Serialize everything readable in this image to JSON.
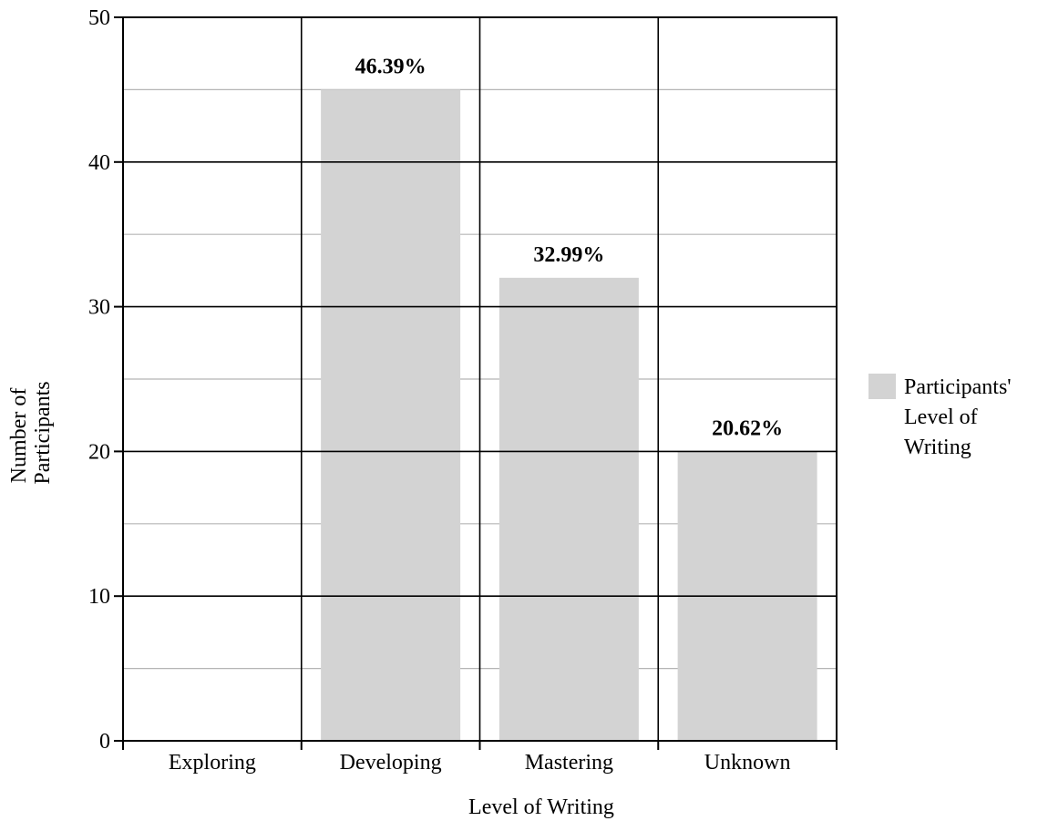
{
  "chart_data": {
    "type": "bar",
    "categories": [
      "Exploring",
      "Developing",
      "Mastering",
      "Unknown"
    ],
    "series": [
      {
        "name": "Participants' Level of Writing",
        "values": [
          0,
          45,
          32,
          20
        ],
        "data_labels": [
          "",
          "46.39%",
          "32.99%",
          "20.62%"
        ],
        "color": "#d3d3d3"
      }
    ],
    "xlabel": "Level of Writing",
    "ylabel_lines": [
      "Number of",
      "Participants"
    ],
    "ylim": [
      0,
      50
    ],
    "yticks": [
      0,
      10,
      20,
      30,
      40,
      50
    ],
    "grid": {
      "major": true,
      "minor": true
    },
    "legend": {
      "position": "right",
      "lines": [
        "Participants'",
        "Level of",
        "Writing"
      ]
    }
  }
}
